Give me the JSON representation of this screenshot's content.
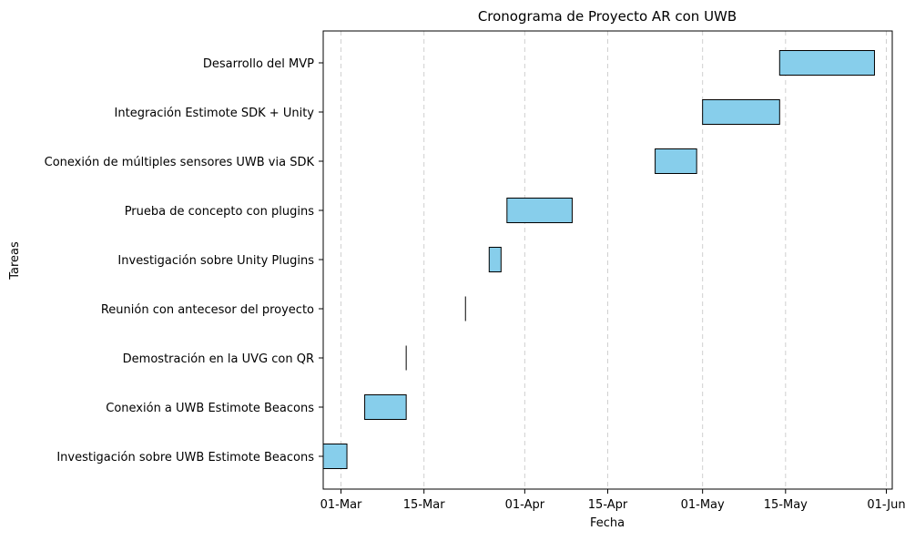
{
  "chart_data": {
    "type": "gantt",
    "title": "Cronograma de Proyecto AR con UWB",
    "xlabel": "Fecha",
    "ylabel": "Tareas",
    "x_range": [
      "2024-02-27",
      "2024-06-02"
    ],
    "grid": "x-dashed",
    "x_ticks": [
      {
        "date": "2024-03-01",
        "label": "01-Mar"
      },
      {
        "date": "2024-03-15",
        "label": "15-Mar"
      },
      {
        "date": "2024-04-01",
        "label": "01-Apr"
      },
      {
        "date": "2024-04-15",
        "label": "15-Apr"
      },
      {
        "date": "2024-05-01",
        "label": "01-May"
      },
      {
        "date": "2024-05-15",
        "label": "15-May"
      },
      {
        "date": "2024-06-01",
        "label": "01-Jun"
      }
    ],
    "tasks": [
      {
        "name": "Investigación sobre UWB Estimote Beacons",
        "start": "2024-02-27",
        "end": "2024-03-02"
      },
      {
        "name": "Conexión a UWB Estimote Beacons",
        "start": "2024-03-05",
        "end": "2024-03-12"
      },
      {
        "name": "Demostración en la UVG con QR",
        "start": "2024-03-12",
        "end": "2024-03-12"
      },
      {
        "name": "Reunión con antecesor del proyecto",
        "start": "2024-03-22",
        "end": "2024-03-22"
      },
      {
        "name": "Investigación sobre Unity Plugins",
        "start": "2024-03-26",
        "end": "2024-03-28"
      },
      {
        "name": "Prueba de concepto con plugins",
        "start": "2024-03-29",
        "end": "2024-04-09"
      },
      {
        "name": "Conexión de múltiples sensores UWB via SDK",
        "start": "2024-04-23",
        "end": "2024-04-30"
      },
      {
        "name": "Integración Estimote SDK + Unity",
        "start": "2024-05-01",
        "end": "2024-05-14"
      },
      {
        "name": "Desarrollo del MVP",
        "start": "2024-05-14",
        "end": "2024-05-30"
      }
    ],
    "colors": {
      "bar_fill": "#87ceeb",
      "bar_edge": "#000000",
      "grid": "#d0d0d0"
    }
  }
}
